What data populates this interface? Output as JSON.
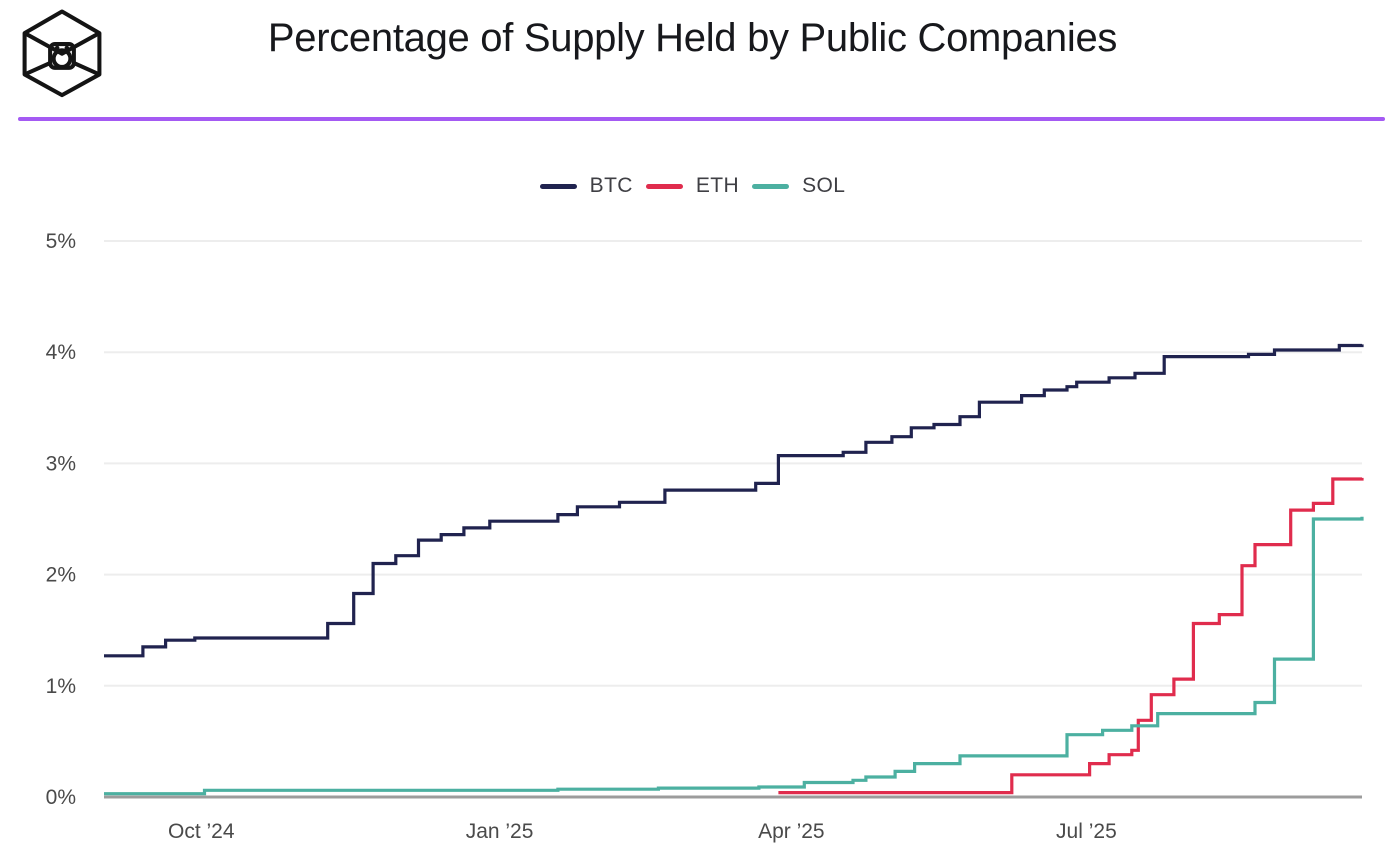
{
  "header": {
    "title": "Percentage of Supply Held by Public Companies",
    "logo": "blockworks-cube-logo"
  },
  "colors": {
    "accent_rule": "#a45af3",
    "gridline": "#ededed",
    "axis_line": "#9c9c9c",
    "axis_label": "#4a4a4a",
    "title_text": "#17181c",
    "legend_label": "#3f3f44",
    "btc": "#20234f",
    "eth": "#e02c4d",
    "sol": "#4cb0a1"
  },
  "legend": {
    "items": [
      {
        "label": "BTC",
        "color": "#20234f"
      },
      {
        "label": "ETH",
        "color": "#e02c4d"
      },
      {
        "label": "SOL",
        "color": "#4cb0a1"
      }
    ]
  },
  "chart_data": {
    "type": "line",
    "line_style": "step-after",
    "title": "Percentage of Supply Held by Public Companies",
    "xlabel": "",
    "ylabel": "",
    "ylim": [
      0,
      5
    ],
    "grid": "horizontal-only",
    "legend_position": "top-center",
    "y_ticks": [
      {
        "label": "0%",
        "value": 0
      },
      {
        "label": "1%",
        "value": 1
      },
      {
        "label": "2%",
        "value": 2
      },
      {
        "label": "3%",
        "value": 3
      },
      {
        "label": "4%",
        "value": 4
      },
      {
        "label": "5%",
        "value": 5
      }
    ],
    "x_domain": [
      "2024-09-01",
      "2025-09-24"
    ],
    "x_ticks": [
      {
        "label": "Oct ’24",
        "date": "2024-10-01"
      },
      {
        "label": "Jan ’25",
        "date": "2025-01-01"
      },
      {
        "label": "Apr ’25",
        "date": "2025-04-01"
      },
      {
        "label": "Jul ’25",
        "date": "2025-07-01"
      }
    ],
    "series": [
      {
        "name": "BTC",
        "color": "#20234f",
        "points": [
          [
            "2024-09-01",
            1.27
          ],
          [
            "2024-09-13",
            1.35
          ],
          [
            "2024-09-20",
            1.41
          ],
          [
            "2024-09-29",
            1.43
          ],
          [
            "2024-11-09",
            1.56
          ],
          [
            "2024-11-17",
            1.83
          ],
          [
            "2024-11-23",
            2.1
          ],
          [
            "2024-11-30",
            2.17
          ],
          [
            "2024-12-07",
            2.31
          ],
          [
            "2024-12-14",
            2.36
          ],
          [
            "2024-12-21",
            2.42
          ],
          [
            "2024-12-29",
            2.48
          ],
          [
            "2025-01-19",
            2.54
          ],
          [
            "2025-01-25",
            2.61
          ],
          [
            "2025-02-07",
            2.65
          ],
          [
            "2025-02-21",
            2.76
          ],
          [
            "2025-03-21",
            2.82
          ],
          [
            "2025-03-28",
            3.07
          ],
          [
            "2025-04-17",
            3.1
          ],
          [
            "2025-04-24",
            3.19
          ],
          [
            "2025-05-02",
            3.24
          ],
          [
            "2025-05-08",
            3.32
          ],
          [
            "2025-05-15",
            3.35
          ],
          [
            "2025-05-23",
            3.42
          ],
          [
            "2025-05-29",
            3.55
          ],
          [
            "2025-06-11",
            3.61
          ],
          [
            "2025-06-18",
            3.66
          ],
          [
            "2025-06-25",
            3.69
          ],
          [
            "2025-06-28",
            3.73
          ],
          [
            "2025-07-08",
            3.77
          ],
          [
            "2025-07-16",
            3.81
          ],
          [
            "2025-07-25",
            3.96
          ],
          [
            "2025-08-20",
            3.98
          ],
          [
            "2025-08-28",
            4.02
          ],
          [
            "2025-09-17",
            4.06
          ],
          [
            "2025-09-24",
            4.07
          ]
        ]
      },
      {
        "name": "ETH",
        "color": "#e02c4d",
        "points": [
          [
            "2025-03-28",
            0.04
          ],
          [
            "2025-06-08",
            0.2
          ],
          [
            "2025-07-02",
            0.3
          ],
          [
            "2025-07-08",
            0.38
          ],
          [
            "2025-07-15",
            0.42
          ],
          [
            "2025-07-17",
            0.69
          ],
          [
            "2025-07-21",
            0.92
          ],
          [
            "2025-07-28",
            1.06
          ],
          [
            "2025-08-03",
            1.56
          ],
          [
            "2025-08-11",
            1.64
          ],
          [
            "2025-08-18",
            2.08
          ],
          [
            "2025-08-22",
            2.27
          ],
          [
            "2025-09-02",
            2.58
          ],
          [
            "2025-09-09",
            2.64
          ],
          [
            "2025-09-15",
            2.86
          ],
          [
            "2025-09-24",
            2.87
          ]
        ]
      },
      {
        "name": "SOL",
        "color": "#4cb0a1",
        "points": [
          [
            "2024-09-01",
            0.03
          ],
          [
            "2024-10-02",
            0.06
          ],
          [
            "2025-01-19",
            0.07
          ],
          [
            "2025-02-19",
            0.08
          ],
          [
            "2025-03-22",
            0.09
          ],
          [
            "2025-04-05",
            0.13
          ],
          [
            "2025-04-20",
            0.15
          ],
          [
            "2025-04-24",
            0.18
          ],
          [
            "2025-05-03",
            0.23
          ],
          [
            "2025-05-09",
            0.3
          ],
          [
            "2025-05-23",
            0.37
          ],
          [
            "2025-06-25",
            0.56
          ],
          [
            "2025-07-06",
            0.6
          ],
          [
            "2025-07-15",
            0.64
          ],
          [
            "2025-07-23",
            0.75
          ],
          [
            "2025-08-22",
            0.85
          ],
          [
            "2025-08-28",
            1.24
          ],
          [
            "2025-09-09",
            2.5
          ],
          [
            "2025-09-24",
            2.52
          ]
        ]
      }
    ]
  }
}
